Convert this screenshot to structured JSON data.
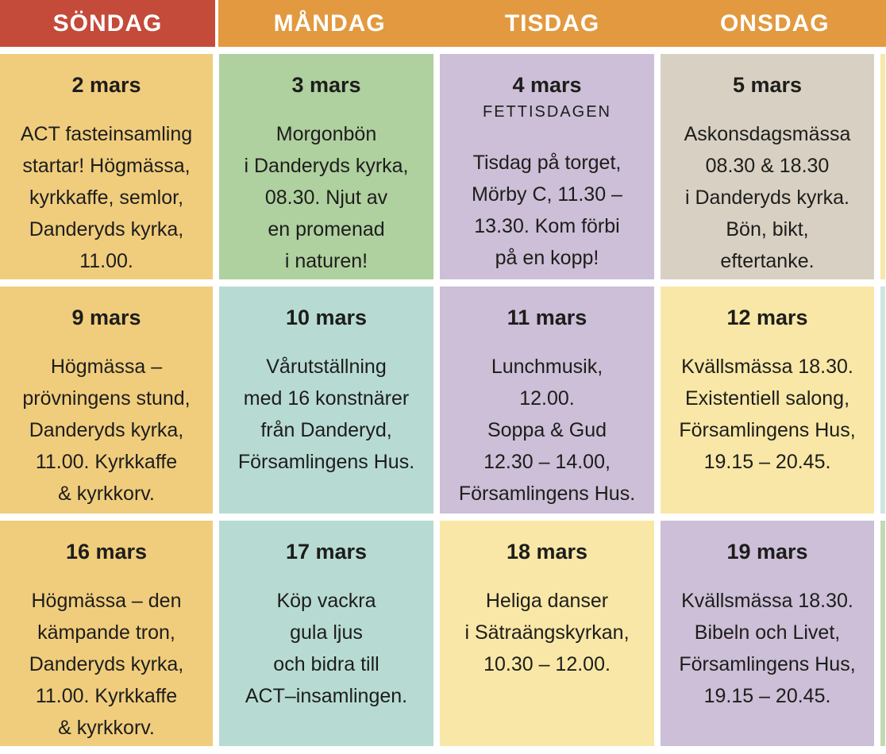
{
  "header": {
    "text_color": "#ffffff",
    "days": [
      {
        "label": "SÖNDAG",
        "bg": "#c44a3a"
      },
      {
        "label": "MÅNDAG",
        "bg": "#e2993f"
      },
      {
        "label": "TISDAG",
        "bg": "#e2993f"
      },
      {
        "label": "ONSDAG",
        "bg": "#e2993f"
      }
    ]
  },
  "colors": {
    "background": "#ffffff",
    "text": "#1d1d1b",
    "gold": "#f0cd7d",
    "green": "#afd09f",
    "lavender": "#ccbfd7",
    "beige": "#d8d1c3",
    "teal": "#b7dbd3",
    "pale_yellow": "#f8e7a6"
  },
  "cells": [
    {
      "date": "2 mars",
      "body": "ACT fasteinsamling\nstartar! Högmässa,\nkyrkkaffe, semlor,\nDanderyds kyrka,\n11.00.",
      "bg": "#f0cd7d"
    },
    {
      "date": "3 mars",
      "body": "Morgonbön\ni Danderyds kyrka,\n08.30. Njut av\nen promenad\ni naturen!",
      "bg": "#afd09f"
    },
    {
      "date": "4 mars",
      "subtitle": "FETTISDAGEN",
      "body": "Tisdag på torget,\nMörby C, 11.30 –\n13.30. Kom förbi\npå en kopp!",
      "bg": "#ccbfd7"
    },
    {
      "date": "5 mars",
      "body": "Askonsdagsmässa\n08.30 & 18.30\ni Danderyds kyrka.\nBön, bikt,\neftertanke.",
      "bg": "#d8d1c3"
    },
    {
      "date": "9 mars",
      "body": "Högmässa –\nprövningens stund,\nDanderyds kyrka,\n11.00. Kyrkkaffe\n& kyrkkorv.",
      "bg": "#f0cd7d"
    },
    {
      "date": "10 mars",
      "body": "Vårutställning\nmed 16 konstnärer\nfrån Danderyd,\nFörsamlingens Hus.",
      "bg": "#b7dbd3"
    },
    {
      "date": "11 mars",
      "body": "Lunchmusik,\n12.00.\nSoppa & Gud\n12.30 – 14.00,\nFörsamlingens Hus.",
      "bg": "#ccbfd7"
    },
    {
      "date": "12 mars",
      "body": "Kvällsmässa 18.30.\nExistentiell salong,\nFörsamlingens Hus,\n19.15 – 20.45.",
      "bg": "#f8e7a6"
    },
    {
      "date": "16 mars",
      "body": "Högmässa – den\nkämpande tron,\nDanderyds kyrka,\n11.00. Kyrkkaffe\n& kyrkkorv.",
      "bg": "#f0cd7d"
    },
    {
      "date": "17 mars",
      "body": "Köp vackra\ngula ljus\noch bidra till\nACT–insamlingen.",
      "bg": "#b7dbd3"
    },
    {
      "date": "18 mars",
      "body": "Heliga danser\ni Sätraängskyrkan,\n10.30 – 12.00.",
      "bg": "#f8e7a6"
    },
    {
      "date": "19 mars",
      "body": "Kvällsmässa 18.30.\nBibeln och Livet,\nFörsamlingens Hus,\n19.15 – 20.45.",
      "bg": "#ccbfd7"
    }
  ],
  "partial_next_column": {
    "header_bg": "#e2993f",
    "rows": [
      "#f7e7a9",
      "#cfe5e0",
      "#c3d9b3"
    ]
  }
}
